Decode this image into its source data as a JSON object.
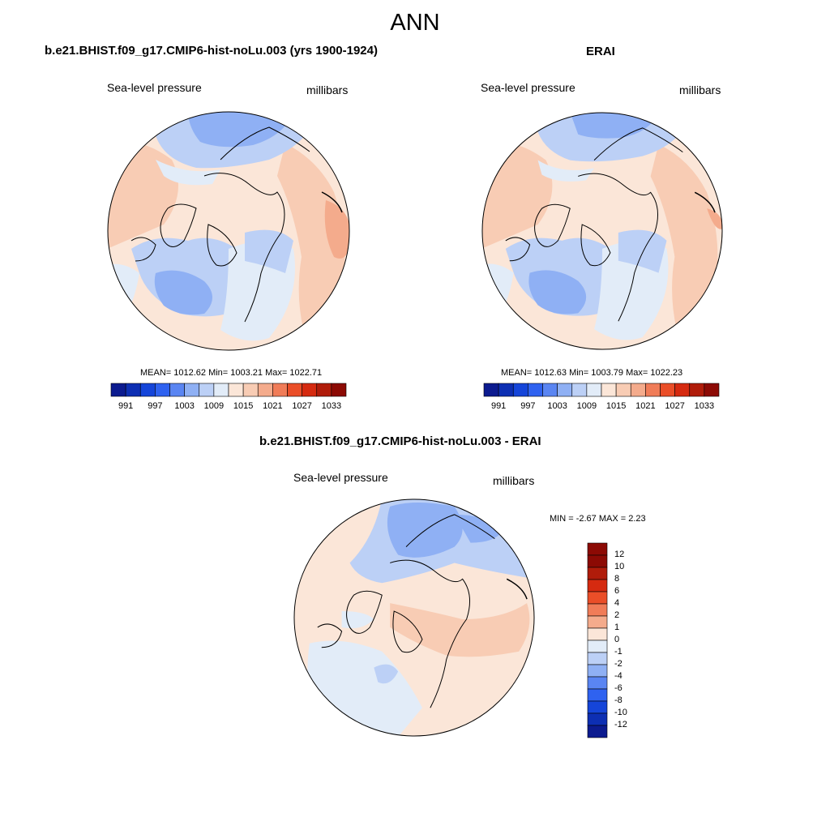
{
  "title": "ANN",
  "panels": [
    {
      "title": "b.e21.BHIST.f09_g17.CMIP6-hist-noLu.003 (yrs 1900-1924)",
      "variable": "Sea-level pressure",
      "units": "millibars",
      "stats": "MEAN= 1012.62  Min= 1003.21  Max= 1022.71"
    },
    {
      "title": "ERAI",
      "variable": "Sea-level pressure",
      "units": "millibars",
      "stats": "MEAN= 1012.63  Min= 1003.79  Max= 1022.23"
    },
    {
      "title": "b.e21.BHIST.f09_g17.CMIP6-hist-noLu.003 - ERAI",
      "variable": "Sea-level pressure",
      "units": "millibars",
      "stats": "MIN =  -2.67 MAX =   2.23"
    }
  ],
  "colorbar_abs": {
    "colors": [
      "#0c1b8f",
      "#0d2fb3",
      "#1545d9",
      "#2f62f0",
      "#5a85f2",
      "#8fb0f4",
      "#bcd0f6",
      "#e2ecf8",
      "#fbe6d8",
      "#f8ccb4",
      "#f4ab8c",
      "#f07c58",
      "#ea4e28",
      "#d52a10",
      "#b01c0a",
      "#8c0a04"
    ],
    "labels": [
      "991",
      "997",
      "1003",
      "1009",
      "1015",
      "1021",
      "1027",
      "1033"
    ]
  },
  "colorbar_diff": {
    "colors": [
      "#8c0a04",
      "#b01c0a",
      "#d52a10",
      "#ea4e28",
      "#f07c58",
      "#f4ab8c",
      "#fbe6d8",
      "#e2ecf8",
      "#bcd0f6",
      "#8fb0f4",
      "#5a85f2",
      "#2f62f0",
      "#1545d9",
      "#0d2fb3",
      "#0c1b8f"
    ],
    "labels": [
      "12",
      "10",
      "8",
      "6",
      "4",
      "2",
      "1",
      "0",
      "-1",
      "-2",
      "-4",
      "-6",
      "-8",
      "-10",
      "-12"
    ]
  }
}
